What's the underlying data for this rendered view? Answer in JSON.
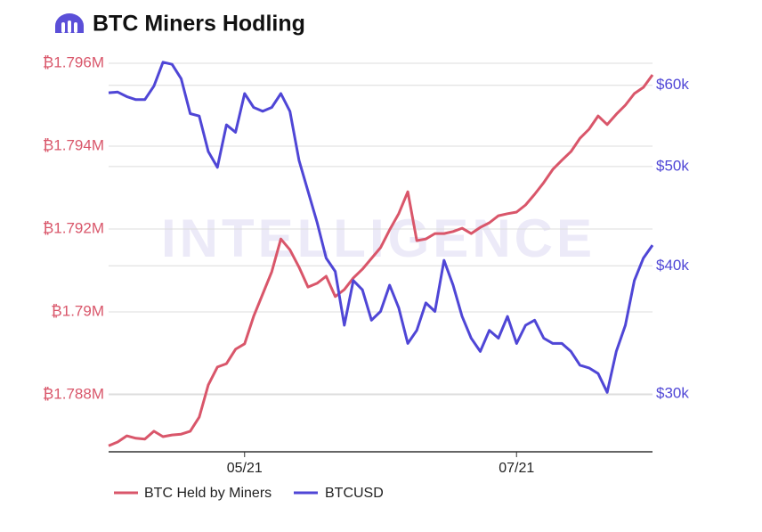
{
  "chart_data": {
    "type": "line",
    "title": "BTC Miners Hodling",
    "watermark": "INTELLIGENCE",
    "categories": [
      null,
      null,
      null,
      null,
      null,
      null,
      null,
      null,
      null,
      null,
      null,
      null,
      null,
      null,
      null,
      "05/21",
      null,
      null,
      null,
      null,
      null,
      null,
      null,
      null,
      null,
      null,
      null,
      null,
      null,
      null,
      null,
      null,
      null,
      null,
      null,
      null,
      null,
      null,
      null,
      null,
      null,
      null,
      null,
      null,
      null,
      "07/21",
      null,
      null,
      null,
      null,
      null,
      null,
      null,
      null,
      null,
      null,
      null,
      null,
      null,
      null,
      null
    ],
    "series": [
      {
        "name": "BTC Held by Miners",
        "color": "#d9566a",
        "axis": "y",
        "values": [
          1786770,
          1786860,
          1787010,
          1786950,
          1786930,
          1787120,
          1786990,
          1787030,
          1787050,
          1787120,
          1787460,
          1788240,
          1788670,
          1788750,
          1789100,
          1789230,
          1789890,
          1790430,
          1790970,
          1791760,
          1791500,
          1791080,
          1790600,
          1790690,
          1790860,
          1790370,
          1790540,
          1790820,
          1791030,
          1791290,
          1791550,
          1791980,
          1792370,
          1792900,
          1791720,
          1791760,
          1791890,
          1791890,
          1791940,
          1792020,
          1791890,
          1792040,
          1792150,
          1792320,
          1792370,
          1792410,
          1792580,
          1792840,
          1793120,
          1793440,
          1793660,
          1793870,
          1794190,
          1794410,
          1794730,
          1794520,
          1794770,
          1794990,
          1795270,
          1795420,
          1795720
        ]
      },
      {
        "name": "BTCUSD",
        "color": "#4f46d6",
        "axis": "y2",
        "values": [
          59000,
          59100,
          58500,
          58100,
          58100,
          59900,
          63200,
          62900,
          60900,
          56300,
          56000,
          51700,
          49900,
          54900,
          54000,
          58900,
          57100,
          56600,
          57100,
          58900,
          56600,
          50700,
          47300,
          44100,
          40700,
          39500,
          35000,
          38700,
          37900,
          35400,
          36100,
          38300,
          36400,
          33600,
          34600,
          36800,
          36100,
          40500,
          38300,
          35700,
          34000,
          33000,
          34600,
          34000,
          35700,
          33600,
          35000,
          35400,
          34000,
          33600,
          33600,
          33000,
          32000,
          31800,
          31400,
          30100,
          33000,
          35000,
          38700,
          40700,
          41900
        ]
      }
    ],
    "ylim": [
      1786624,
      1796237
    ],
    "yticks": [
      {
        "value": 1788000,
        "label": "₿1.788M"
      },
      {
        "value": 1790000,
        "label": "₿1.79M"
      },
      {
        "value": 1792000,
        "label": "₿1.792M"
      },
      {
        "value": 1794000,
        "label": "₿1.794M"
      },
      {
        "value": 1796000,
        "label": "₿1.796M"
      }
    ],
    "y2lim": [
      26340,
      64450
    ],
    "y2scale": "log",
    "y2ticks": [
      {
        "value": 30000,
        "label": "$30k"
      },
      {
        "value": 40000,
        "label": "$40k"
      },
      {
        "value": 50000,
        "label": "$50k"
      },
      {
        "value": 60000,
        "label": "$60k"
      }
    ],
    "grid": true
  }
}
